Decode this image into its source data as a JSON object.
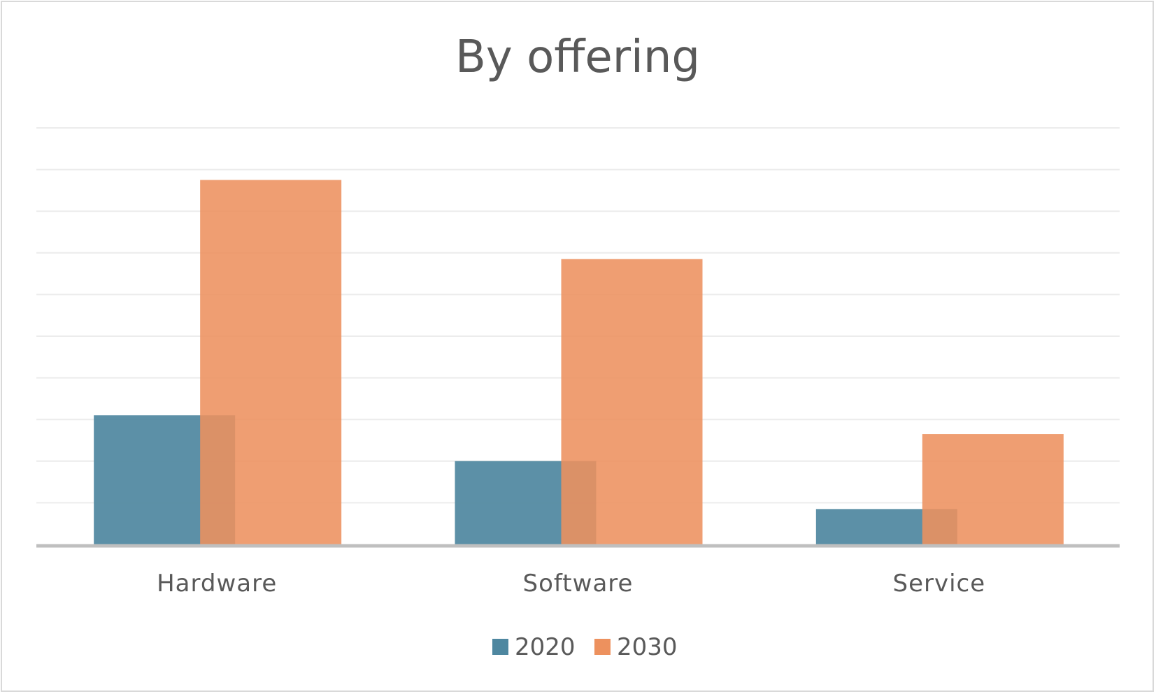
{
  "chart_data": {
    "type": "bar",
    "title": "By offering",
    "categories": [
      "Hardware",
      "Software",
      "Service"
    ],
    "series": [
      {
        "name": "2020",
        "color": "#4e87a0",
        "values": [
          3.1,
          2.0,
          0.85
        ]
      },
      {
        "name": "2030",
        "color": "#ed915e",
        "values": [
          8.75,
          6.85,
          2.65
        ]
      }
    ],
    "xlabel": "",
    "ylabel": "",
    "ylim": [
      0,
      10
    ],
    "grid": true,
    "legend_position": "bottom",
    "series_overlap": true
  }
}
